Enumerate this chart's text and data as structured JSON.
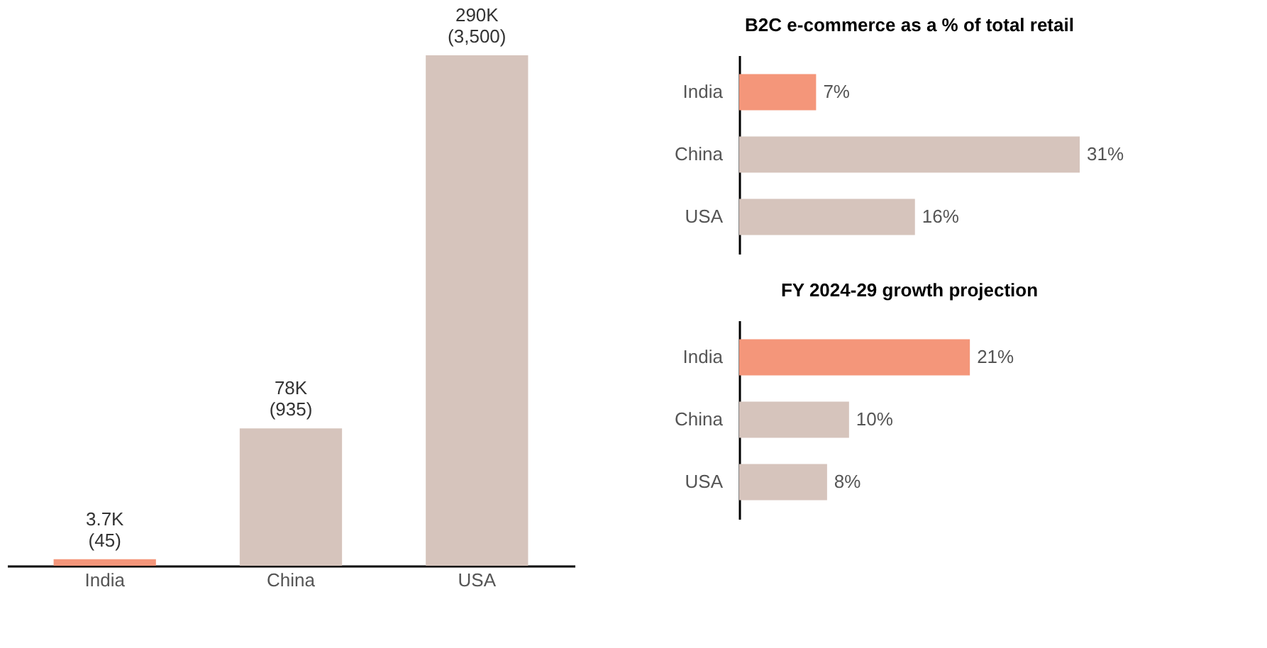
{
  "chart_data": [
    {
      "type": "bar",
      "categories": [
        "India",
        "China",
        "USA"
      ],
      "values": [
        3700,
        78000,
        290000
      ],
      "colors": [
        "#f4967a",
        "#d6c4bc",
        "#d6c4bc"
      ],
      "value_labels": [
        "3.7K\n(45)",
        "78K\n(935)",
        "290K\n(3,500)"
      ],
      "grid": false
    },
    {
      "type": "bar",
      "orientation": "horizontal",
      "title": "B2C e-commerce as a % of total retail",
      "categories": [
        "India",
        "China",
        "USA"
      ],
      "values": [
        7,
        31,
        16
      ],
      "colors": [
        "#f4967a",
        "#d6c4bc",
        "#d6c4bc"
      ],
      "value_labels": [
        "7%",
        "31%",
        "16%"
      ],
      "grid": false
    },
    {
      "type": "bar",
      "orientation": "horizontal",
      "title": "FY 2024-29 growth projection",
      "categories": [
        "India",
        "China",
        "USA"
      ],
      "values": [
        21,
        10,
        8
      ],
      "colors": [
        "#f4967a",
        "#d6c4bc",
        "#d6c4bc"
      ],
      "value_labels": [
        "21%",
        "10%",
        "8%"
      ],
      "grid": false
    }
  ]
}
